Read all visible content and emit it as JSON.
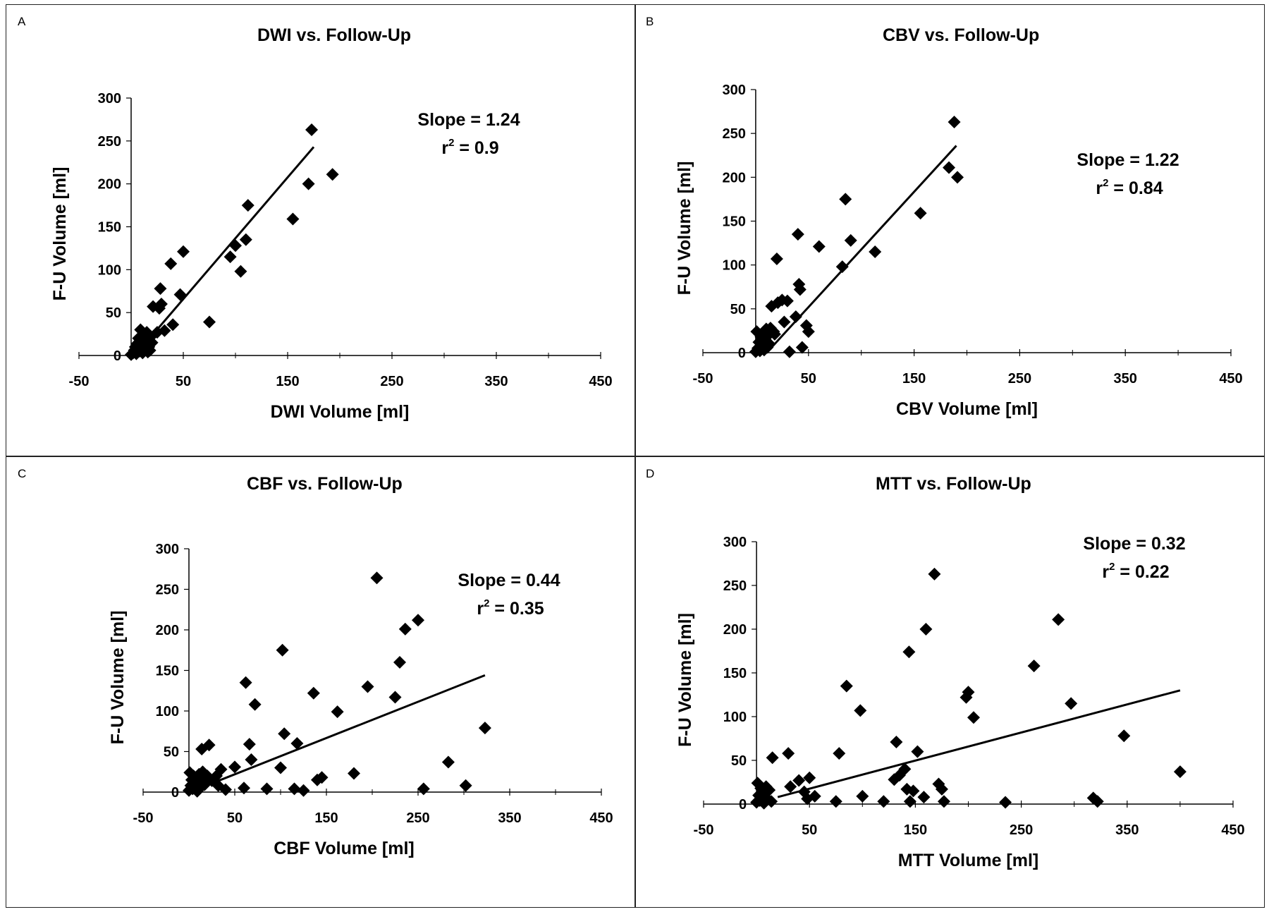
{
  "chart_data": [
    {
      "type": "scatter",
      "panel_label": "A",
      "title": "DWI vs. Follow-Up",
      "xlabel": "DWI Volume [ml]",
      "ylabel": "F-U Volume [ml]",
      "xlim": [
        -50,
        450
      ],
      "ylim": [
        0,
        300
      ],
      "xticks": [
        "-50",
        "50",
        "150",
        "250",
        "350",
        "450"
      ],
      "yticks": [
        "0",
        "50",
        "100",
        "150",
        "200",
        "250",
        "300"
      ],
      "slope_text": "Slope = 1.24",
      "r2_text": "= 0.9",
      "trendline": {
        "x": [
          5,
          175
        ],
        "y": [
          2,
          243
        ]
      },
      "points": [
        [
          0,
          1
        ],
        [
          2,
          3
        ],
        [
          3,
          6
        ],
        [
          4,
          10
        ],
        [
          5,
          2
        ],
        [
          6,
          14
        ],
        [
          7,
          20
        ],
        [
          8,
          5
        ],
        [
          9,
          30
        ],
        [
          10,
          12
        ],
        [
          11,
          3
        ],
        [
          12,
          24
        ],
        [
          13,
          8
        ],
        [
          14,
          18
        ],
        [
          15,
          27
        ],
        [
          16,
          4
        ],
        [
          17,
          10
        ],
        [
          18,
          6
        ],
        [
          19,
          22
        ],
        [
          20,
          15
        ],
        [
          21,
          57
        ],
        [
          25,
          27
        ],
        [
          27,
          55
        ],
        [
          28,
          78
        ],
        [
          29,
          60
        ],
        [
          32,
          29
        ],
        [
          38,
          107
        ],
        [
          40,
          36
        ],
        [
          47,
          71
        ],
        [
          50,
          121
        ],
        [
          75,
          39
        ],
        [
          95,
          115
        ],
        [
          100,
          128
        ],
        [
          105,
          98
        ],
        [
          110,
          135
        ],
        [
          112,
          175
        ],
        [
          155,
          159
        ],
        [
          170,
          200
        ],
        [
          173,
          263
        ],
        [
          193,
          211
        ]
      ]
    },
    {
      "type": "scatter",
      "panel_label": "B",
      "title": "CBV vs. Follow-Up",
      "xlabel": "CBV Volume [ml]",
      "ylabel": "F-U Volume [ml]",
      "xlim": [
        -50,
        450
      ],
      "ylim": [
        0,
        300
      ],
      "xticks": [
        "-50",
        "50",
        "150",
        "250",
        "350",
        "450"
      ],
      "yticks": [
        "0",
        "50",
        "100",
        "150",
        "200",
        "250",
        "300"
      ],
      "slope_text": "Slope = 1.22",
      "r2_text": "= 0.84",
      "trendline": {
        "x": [
          12,
          190
        ],
        "y": [
          2,
          236
        ]
      },
      "points": [
        [
          0,
          1
        ],
        [
          1,
          24
        ],
        [
          2,
          5
        ],
        [
          3,
          12
        ],
        [
          4,
          2
        ],
        [
          5,
          18
        ],
        [
          6,
          8
        ],
        [
          7,
          22
        ],
        [
          8,
          3
        ],
        [
          9,
          15
        ],
        [
          10,
          27
        ],
        [
          11,
          6
        ],
        [
          12,
          20
        ],
        [
          13,
          10
        ],
        [
          14,
          28
        ],
        [
          15,
          53
        ],
        [
          17,
          24
        ],
        [
          18,
          21
        ],
        [
          20,
          107
        ],
        [
          21,
          57
        ],
        [
          25,
          60
        ],
        [
          27,
          35
        ],
        [
          30,
          59
        ],
        [
          32,
          1
        ],
        [
          38,
          41
        ],
        [
          40,
          135
        ],
        [
          41,
          78
        ],
        [
          42,
          72
        ],
        [
          44,
          6
        ],
        [
          48,
          31
        ],
        [
          50,
          24
        ],
        [
          60,
          121
        ],
        [
          82,
          98
        ],
        [
          85,
          175
        ],
        [
          90,
          128
        ],
        [
          113,
          115
        ],
        [
          156,
          159
        ],
        [
          183,
          211
        ],
        [
          188,
          263
        ],
        [
          191,
          200
        ]
      ]
    },
    {
      "type": "scatter",
      "panel_label": "C",
      "title": "CBF vs. Follow-Up",
      "xlabel": "CBF Volume [ml]",
      "ylabel": "F-U Volume [ml]",
      "xlim": [
        -50,
        450
      ],
      "ylim": [
        0,
        300
      ],
      "xticks": [
        "-50",
        "50",
        "150",
        "250",
        "350",
        "450"
      ],
      "yticks": [
        "0",
        "50",
        "100",
        "150",
        "200",
        "250",
        "300"
      ],
      "slope_text": "Slope = 0.44",
      "r2_text": "= 0.35",
      "trendline": {
        "x": [
          30,
          323
        ],
        "y": [
          13,
          144
        ]
      },
      "points": [
        [
          0,
          2
        ],
        [
          1,
          24
        ],
        [
          2,
          8
        ],
        [
          3,
          15
        ],
        [
          4,
          4
        ],
        [
          5,
          20
        ],
        [
          6,
          12
        ],
        [
          7,
          6
        ],
        [
          8,
          18
        ],
        [
          9,
          1
        ],
        [
          10,
          10
        ],
        [
          11,
          22
        ],
        [
          12,
          5
        ],
        [
          13,
          14
        ],
        [
          14,
          53
        ],
        [
          15,
          25
        ],
        [
          16,
          16
        ],
        [
          17,
          9
        ],
        [
          18,
          20
        ],
        [
          20,
          20
        ],
        [
          22,
          58
        ],
        [
          25,
          14
        ],
        [
          30,
          20
        ],
        [
          32,
          8
        ],
        [
          35,
          28
        ],
        [
          40,
          3
        ],
        [
          50,
          31
        ],
        [
          60,
          5
        ],
        [
          62,
          135
        ],
        [
          66,
          59
        ],
        [
          68,
          40
        ],
        [
          72,
          108
        ],
        [
          85,
          4
        ],
        [
          100,
          30
        ],
        [
          102,
          175
        ],
        [
          104,
          72
        ],
        [
          115,
          4
        ],
        [
          118,
          60
        ],
        [
          125,
          2
        ],
        [
          136,
          122
        ],
        [
          140,
          15
        ],
        [
          145,
          18
        ],
        [
          162,
          99
        ],
        [
          180,
          23
        ],
        [
          195,
          130
        ],
        [
          205,
          264
        ],
        [
          225,
          117
        ],
        [
          230,
          160
        ],
        [
          236,
          201
        ],
        [
          250,
          212
        ],
        [
          256,
          4
        ],
        [
          283,
          37
        ],
        [
          302,
          8
        ],
        [
          323,
          79
        ]
      ]
    },
    {
      "type": "scatter",
      "panel_label": "D",
      "title": "MTT vs. Follow-Up",
      "xlabel": "MTT Volume [ml]",
      "ylabel": "F-U Volume [ml]",
      "xlim": [
        -50,
        450
      ],
      "ylim": [
        0,
        300
      ],
      "xticks": [
        "-50",
        "50",
        "150",
        "250",
        "350",
        "450"
      ],
      "yticks": [
        "0",
        "50",
        "100",
        "150",
        "200",
        "250",
        "300"
      ],
      "slope_text": "Slope = 0.32",
      "r2_text": "= 0.22",
      "trendline": {
        "x": [
          20,
          400
        ],
        "y": [
          8,
          130
        ]
      },
      "points": [
        [
          0,
          2
        ],
        [
          1,
          24
        ],
        [
          2,
          10
        ],
        [
          3,
          4
        ],
        [
          4,
          18
        ],
        [
          5,
          7
        ],
        [
          6,
          14
        ],
        [
          7,
          1
        ],
        [
          9,
          20
        ],
        [
          10,
          6
        ],
        [
          12,
          16
        ],
        [
          14,
          3
        ],
        [
          15,
          53
        ],
        [
          30,
          58
        ],
        [
          32,
          20
        ],
        [
          40,
          27
        ],
        [
          45,
          14
        ],
        [
          48,
          6
        ],
        [
          50,
          30
        ],
        [
          55,
          9
        ],
        [
          75,
          3
        ],
        [
          78,
          58
        ],
        [
          85,
          135
        ],
        [
          98,
          107
        ],
        [
          100,
          9
        ],
        [
          120,
          3
        ],
        [
          130,
          28
        ],
        [
          132,
          71
        ],
        [
          135,
          33
        ],
        [
          140,
          40
        ],
        [
          142,
          17
        ],
        [
          144,
          174
        ],
        [
          145,
          3
        ],
        [
          148,
          15
        ],
        [
          152,
          60
        ],
        [
          158,
          8
        ],
        [
          160,
          200
        ],
        [
          168,
          263
        ],
        [
          172,
          23
        ],
        [
          175,
          17
        ],
        [
          177,
          3
        ],
        [
          198,
          122
        ],
        [
          200,
          128
        ],
        [
          205,
          99
        ],
        [
          235,
          2
        ],
        [
          262,
          158
        ],
        [
          285,
          211
        ],
        [
          297,
          115
        ],
        [
          318,
          7
        ],
        [
          322,
          3
        ],
        [
          347,
          78
        ],
        [
          400,
          37
        ]
      ]
    }
  ]
}
